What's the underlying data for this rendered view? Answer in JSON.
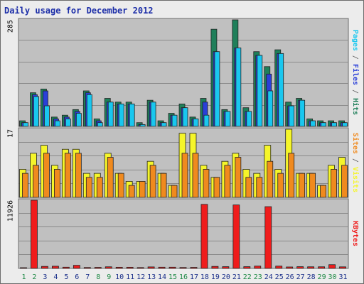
{
  "chart_data": {
    "title": "Daily usage for December 2012",
    "type": "bar",
    "days": [
      "1",
      "2",
      "3",
      "4",
      "5",
      "6",
      "7",
      "8",
      "9",
      "10",
      "11",
      "12",
      "13",
      "14",
      "15",
      "16",
      "17",
      "18",
      "19",
      "20",
      "21",
      "22",
      "23",
      "24",
      "25",
      "26",
      "27",
      "28",
      "29",
      "30",
      "31"
    ],
    "weekend_days": [
      "1",
      "2",
      "8",
      "9",
      "15",
      "16",
      "22",
      "23",
      "29",
      "30"
    ],
    "colors": {
      "hits": "#1f7f5a",
      "files": "#2a3fd8",
      "pages": "#19c7ef",
      "visits": "#f5f52a",
      "sites": "#f08a1e",
      "kbytes": "#ef1c1c",
      "weekday_label": "#1a2f8a",
      "weekend_label": "#1f8a46"
    },
    "panels": {
      "requests": {
        "max_label": "285",
        "ymax": 285,
        "legend": [
          {
            "key": "pages",
            "text": "Pages",
            "color": "#19c7ef"
          },
          {
            "key": "sep1",
            "text": " / ",
            "color": "#555555"
          },
          {
            "key": "files",
            "text": "Files",
            "color": "#2a3fd8"
          },
          {
            "key": "sep2",
            "text": " / ",
            "color": "#555555"
          },
          {
            "key": "hits",
            "text": "Hits",
            "color": "#1f7f5a"
          }
        ],
        "hits": [
          15,
          90,
          100,
          25,
          30,
          45,
          95,
          20,
          75,
          65,
          65,
          10,
          70,
          15,
          35,
          60,
          25,
          75,
          260,
          45,
          285,
          50,
          200,
          160,
          205,
          65,
          75,
          20,
          15,
          15,
          15
        ],
        "files": [
          10,
          85,
          95,
          20,
          25,
          40,
          90,
          15,
          65,
          60,
          60,
          5,
          65,
          10,
          30,
          50,
          20,
          65,
          200,
          40,
          210,
          40,
          190,
          140,
          195,
          55,
          70,
          15,
          10,
          10,
          10
        ],
        "pages": [
          10,
          80,
          55,
          15,
          20,
          35,
          85,
          10,
          65,
          60,
          60,
          5,
          65,
          10,
          30,
          50,
          20,
          30,
          200,
          40,
          210,
          40,
          190,
          95,
          195,
          55,
          70,
          15,
          10,
          10,
          10
        ]
      },
      "visitors": {
        "max_label": "17",
        "ymax": 17,
        "legend": [
          {
            "key": "sites",
            "text": "Sites",
            "color": "#f08a1e"
          },
          {
            "key": "sep",
            "text": " / ",
            "color": "#555555"
          },
          {
            "key": "visits",
            "text": "Visits",
            "color": "#f5f52a"
          }
        ],
        "visits": [
          7,
          11,
          13,
          8,
          12,
          12,
          6,
          6,
          11,
          6,
          4,
          4,
          9,
          6,
          3,
          16,
          16,
          8,
          5,
          9,
          11,
          7,
          6,
          13,
          7,
          17,
          6,
          6,
          3,
          8,
          10
        ],
        "sites": [
          6,
          8,
          11,
          7,
          11,
          11,
          5,
          5,
          10,
          6,
          3,
          4,
          8,
          6,
          3,
          11,
          11,
          7,
          5,
          8,
          10,
          5,
          5,
          9,
          6,
          11,
          6,
          6,
          3,
          7,
          8
        ]
      },
      "kbytes": {
        "max_label": "11926",
        "ymax": 11926,
        "legend": [
          {
            "key": "kbytes",
            "text": "KBytes",
            "color": "#ef1c1c"
          }
        ],
        "values": [
          80,
          11926,
          350,
          380,
          210,
          540,
          160,
          180,
          280,
          200,
          200,
          150,
          260,
          210,
          210,
          160,
          180,
          11200,
          350,
          300,
          11100,
          300,
          400,
          10800,
          400,
          250,
          300,
          280,
          280,
          650,
          270
        ]
      }
    }
  }
}
